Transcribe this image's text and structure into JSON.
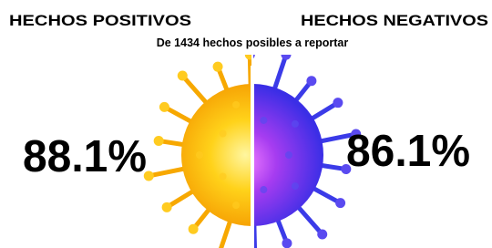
{
  "header": {
    "left_title": "HECHOS POSITIVOS",
    "right_title": "HECHOS NEGATIVOS",
    "subtitle": "De 1434 hechos posibles a reportar"
  },
  "left": {
    "value": "88.1%"
  },
  "right": {
    "value": "86.1%"
  }
}
